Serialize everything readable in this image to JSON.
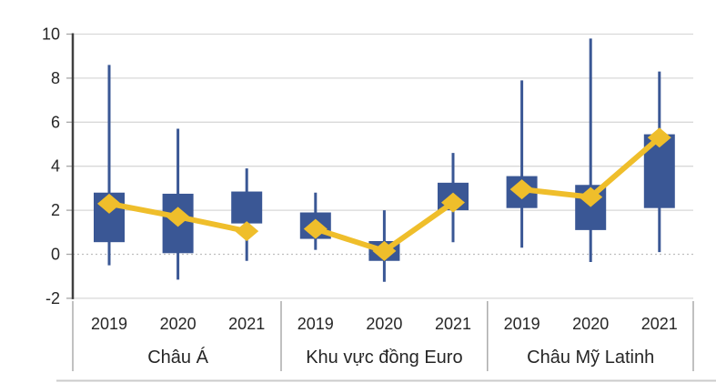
{
  "chart_data": {
    "type": "box-whisker-with-line",
    "title": "",
    "y_axis": {
      "tick_labels": [
        "10",
        "8",
        "6",
        "4",
        "2",
        "0",
        "-2"
      ],
      "tick_values": [
        10,
        8,
        6,
        4,
        2,
        0,
        -2
      ],
      "min": -2,
      "max": 10,
      "zero_line_style": "dotted",
      "grid": true
    },
    "x_axis": {
      "year_labels": [
        "2019",
        "2020",
        "2021"
      ],
      "group_labels": [
        "Châu Á",
        "Khu vực đồng Euro",
        "Châu Mỹ Latinh"
      ]
    },
    "groups": [
      {
        "label": "Châu Á",
        "series": [
          {
            "year": "2019",
            "whisker_low": -0.5,
            "box_low": 0.55,
            "box_high": 2.8,
            "whisker_high": 8.6,
            "marker": 2.3
          },
          {
            "year": "2020",
            "whisker_low": -1.15,
            "box_low": 0.05,
            "box_high": 2.75,
            "whisker_high": 5.7,
            "marker": 1.7
          },
          {
            "year": "2021",
            "whisker_low": -0.3,
            "box_low": 1.4,
            "box_high": 2.85,
            "whisker_high": 3.9,
            "marker": 1.05
          }
        ]
      },
      {
        "label": "Khu vực đồng Euro",
        "series": [
          {
            "year": "2019",
            "whisker_low": 0.2,
            "box_low": 0.7,
            "box_high": 1.9,
            "whisker_high": 2.8,
            "marker": 1.15
          },
          {
            "year": "2020",
            "whisker_low": -1.25,
            "box_low": -0.3,
            "box_high": 0.6,
            "whisker_high": 2.0,
            "marker": 0.15
          },
          {
            "year": "2021",
            "whisker_low": 0.55,
            "box_low": 2.0,
            "box_high": 3.25,
            "whisker_high": 4.6,
            "marker": 2.35
          }
        ]
      },
      {
        "label": "Châu Mỹ Latinh",
        "series": [
          {
            "year": "2019",
            "whisker_low": 0.3,
            "box_low": 2.1,
            "box_high": 3.55,
            "whisker_high": 7.9,
            "marker": 2.95
          },
          {
            "year": "2020",
            "whisker_low": -0.35,
            "box_low": 1.1,
            "box_high": 3.15,
            "whisker_high": 9.8,
            "marker": 2.6
          },
          {
            "year": "2021",
            "whisker_low": 0.1,
            "box_low": 2.1,
            "box_high": 5.45,
            "whisker_high": 8.3,
            "marker": 5.3
          }
        ]
      }
    ],
    "colors": {
      "box": "#3A5795",
      "whisker": "#3A5795",
      "marker_line": "#EFBE2B",
      "gridline": "#D9D9D9",
      "zero_gridline": "#BFBFBF",
      "axis_line": "#404040",
      "separator": "#A6A6A6",
      "text": "#262626",
      "bottom_border": "#CBCBCB"
    }
  }
}
